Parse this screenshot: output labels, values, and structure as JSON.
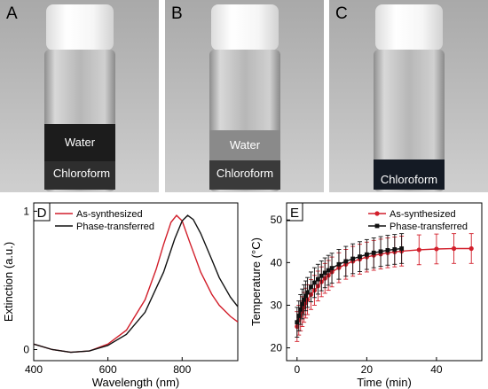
{
  "photos": [
    {
      "letter": "A",
      "upper_label": "Water",
      "lower_label": "Chloroform"
    },
    {
      "letter": "B",
      "upper_label": "Water",
      "lower_label": "Chloroform"
    },
    {
      "letter": "C",
      "lower_label": "Chloroform"
    }
  ],
  "colors": {
    "as_synthesized": "#d21f2b",
    "phase_transferred": "#111111"
  },
  "chart_data": [
    {
      "panel": "D",
      "type": "line",
      "xlabel": "Wavelength (nm)",
      "ylabel": "Extinction (a.u.)",
      "xlim": [
        400,
        950
      ],
      "ylim": [
        -0.08,
        1.06
      ],
      "xticks": [
        400,
        600,
        800
      ],
      "yticks": [
        0,
        1
      ],
      "legend": "top-left",
      "grid": false,
      "series": [
        {
          "name": "As-synthesized",
          "color": "#d21f2b",
          "x": [
            400,
            450,
            500,
            550,
            600,
            650,
            700,
            730,
            750,
            770,
            785,
            800,
            820,
            850,
            880,
            900,
            930,
            950
          ],
          "y": [
            0.04,
            0.0,
            -0.02,
            -0.01,
            0.04,
            0.14,
            0.36,
            0.58,
            0.76,
            0.92,
            0.97,
            0.93,
            0.78,
            0.56,
            0.4,
            0.32,
            0.24,
            0.2
          ]
        },
        {
          "name": "Phase-transferred",
          "color": "#111111",
          "x": [
            400,
            450,
            500,
            550,
            600,
            650,
            700,
            750,
            780,
            800,
            815,
            830,
            850,
            880,
            900,
            930,
            950
          ],
          "y": [
            0.04,
            0.0,
            -0.02,
            -0.01,
            0.03,
            0.11,
            0.27,
            0.56,
            0.8,
            0.93,
            0.97,
            0.94,
            0.84,
            0.65,
            0.52,
            0.38,
            0.31
          ]
        }
      ]
    },
    {
      "panel": "E",
      "type": "line",
      "xlabel": "Time (min)",
      "ylabel": "Temperature (°C)",
      "xlim": [
        -3,
        53
      ],
      "ylim": [
        17,
        54
      ],
      "xticks": [
        0,
        20,
        40
      ],
      "yticks": [
        20,
        30,
        40,
        50
      ],
      "legend": "top-right",
      "grid": false,
      "series": [
        {
          "name": "As-synthesized",
          "color": "#d21f2b",
          "marker": "circle",
          "x": [
            0,
            0.5,
            1,
            1.5,
            2,
            2.5,
            3,
            4,
            5,
            6,
            7,
            8,
            9,
            10,
            12,
            14,
            16,
            18,
            20,
            22,
            24,
            26,
            28,
            30,
            35,
            40,
            45,
            50
          ],
          "y": [
            25,
            26.5,
            27.5,
            28.5,
            29.5,
            30.5,
            31.3,
            32.5,
            33.5,
            34.5,
            35.5,
            36.3,
            37,
            37.8,
            38.8,
            39.6,
            40.3,
            40.8,
            41.3,
            41.7,
            42,
            42.3,
            42.5,
            42.7,
            43,
            43.2,
            43.3,
            43.3
          ],
          "error": 3.5
        },
        {
          "name": "Phase-transferred",
          "color": "#111111",
          "marker": "square",
          "x": [
            0,
            0.5,
            1,
            1.5,
            2,
            2.5,
            3,
            4,
            5,
            6,
            7,
            8,
            9,
            10,
            12,
            14,
            16,
            18,
            20,
            22,
            24,
            26,
            28,
            30
          ],
          "y": [
            26,
            27.5,
            29,
            30.3,
            31.3,
            32.2,
            33,
            34.3,
            35.3,
            36.1,
            36.9,
            37.6,
            38.2,
            38.7,
            39.6,
            40.3,
            40.9,
            41.4,
            41.9,
            42.3,
            42.6,
            42.9,
            43.1,
            43.3
          ],
          "error": 3.5
        }
      ]
    }
  ]
}
